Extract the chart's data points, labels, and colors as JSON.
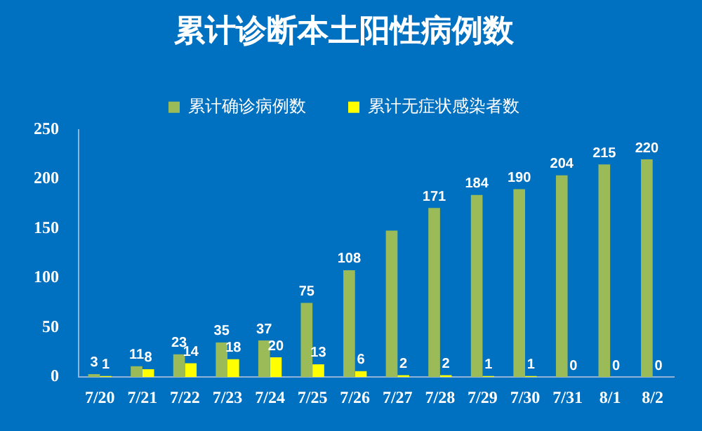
{
  "chart_data": {
    "type": "bar",
    "title": "累计诊断本土阳性病例数",
    "categories": [
      "7/20",
      "7/21",
      "7/22",
      "7/23",
      "7/24",
      "7/25",
      "7/26",
      "7/27",
      "7/28",
      "7/29",
      "7/30",
      "7/31",
      "8/1",
      "8/2"
    ],
    "series": [
      {
        "name": "累计确诊病例数",
        "color": "#9bbb59",
        "values": [
          3,
          11,
          23,
          35,
          37,
          75,
          108,
          148,
          171,
          184,
          190,
          204,
          215,
          220
        ],
        "value_labels": [
          "3",
          "11",
          "23",
          "35",
          "37",
          "75",
          "108",
          null,
          "171",
          "184",
          "190",
          "204",
          "215",
          "220"
        ]
      },
      {
        "name": "累计无症状感染者数",
        "color": "#ffff00",
        "values": [
          1,
          8,
          14,
          18,
          20,
          13,
          6,
          2,
          2,
          1,
          1,
          0,
          0,
          0
        ],
        "value_labels": [
          "1",
          "8",
          "14",
          "18",
          "20",
          "13",
          "6",
          "2",
          "2",
          "1",
          "1",
          "0",
          "0",
          "0"
        ]
      }
    ],
    "ylim": [
      0,
      250
    ],
    "yticks": [
      0,
      50,
      100,
      150,
      200,
      250
    ],
    "legend": "top",
    "grid": false
  }
}
